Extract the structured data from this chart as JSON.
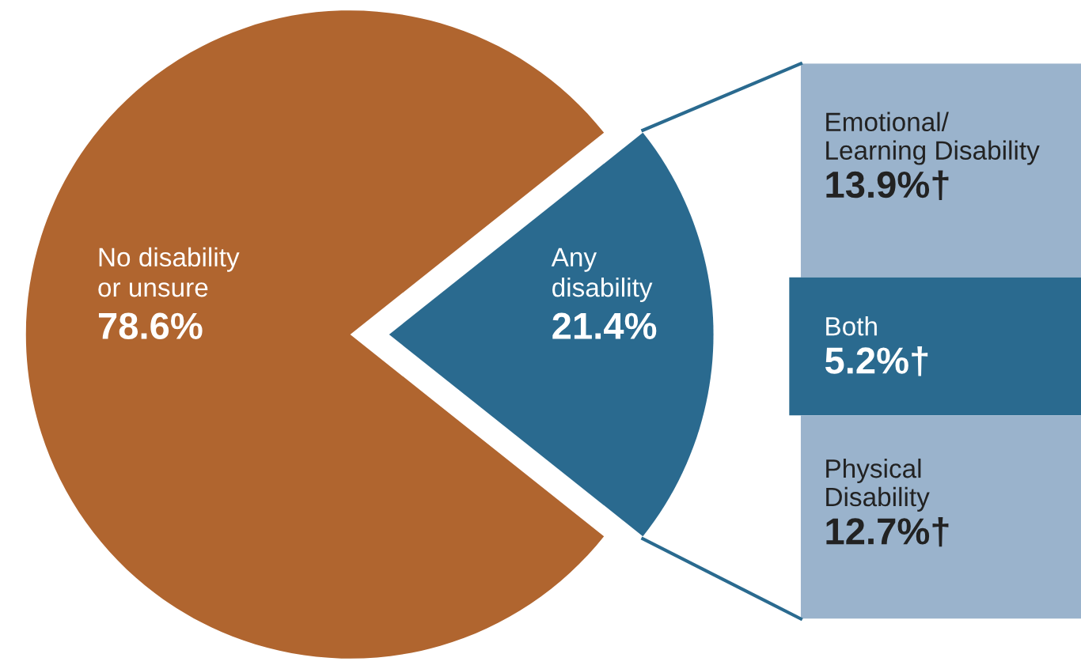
{
  "chart_data": [
    {
      "type": "pie",
      "categories": [
        "No disability\nor unsure",
        "Any\ndisability"
      ],
      "values": [
        78.6,
        21.4
      ],
      "colors": [
        "#b0652f",
        "#2a6a8f"
      ],
      "value_labels": [
        "78.6%",
        "21.4%"
      ],
      "legend": false
    },
    {
      "type": "other",
      "categories": [
        "Emotional/\nLearning Disability",
        "Both",
        "Physical\nDisability"
      ],
      "values": [
        13.9,
        5.2,
        12.7
      ],
      "colors": [
        "#9ab3cc",
        "#2a6a8f",
        "#9ab3cc"
      ],
      "value_labels": [
        "13.9%†",
        "5.2%†",
        "12.7%†"
      ]
    }
  ]
}
